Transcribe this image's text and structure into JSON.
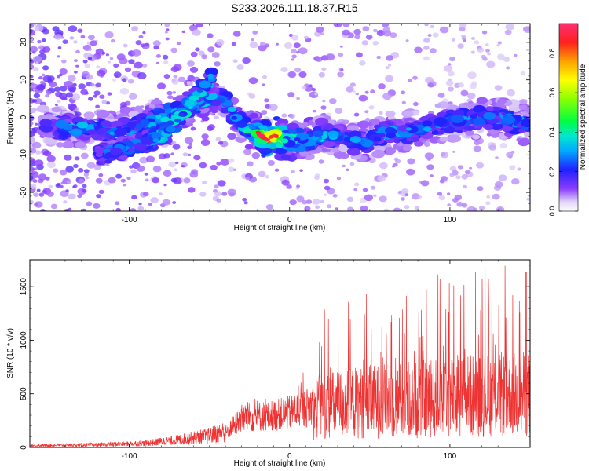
{
  "title": "S233.2026.111.18.37.R15",
  "chart_data": [
    {
      "type": "heatmap",
      "xlabel": "Height of straight line (km)",
      "ylabel": "Frequency (Hz)",
      "xlim": [
        -162,
        150
      ],
      "ylim": [
        -25,
        25
      ],
      "xticks": [
        -100,
        0,
        100
      ],
      "yticks": [
        -20,
        -10,
        0,
        10,
        20
      ],
      "colorbar": {
        "label": "Normalized spectral amplitude",
        "range": [
          0,
          0.95
        ],
        "ticks": [
          0.0,
          0.2,
          0.4,
          0.6,
          0.8
        ]
      },
      "ridge": [
        {
          "x": -150,
          "y": -2,
          "a": 0.2
        },
        {
          "x": -140,
          "y": -3,
          "a": 0.3
        },
        {
          "x": -130,
          "y": -3,
          "a": 0.35
        },
        {
          "x": -120,
          "y": -3,
          "a": 0.3
        },
        {
          "x": -110,
          "y": -4,
          "a": 0.3
        },
        {
          "x": -100,
          "y": -3,
          "a": 0.3
        },
        {
          "x": -90,
          "y": -2,
          "a": 0.3
        },
        {
          "x": -80,
          "y": 0,
          "a": 0.35
        },
        {
          "x": -70,
          "y": 1,
          "a": 0.4
        },
        {
          "x": -60,
          "y": 3,
          "a": 0.35
        },
        {
          "x": -50,
          "y": 5,
          "a": 0.35
        },
        {
          "x": -40,
          "y": 4,
          "a": 0.3
        },
        {
          "x": -30,
          "y": -2,
          "a": 0.35
        },
        {
          "x": -20,
          "y": -4,
          "a": 0.45
        },
        {
          "x": -15,
          "y": -6,
          "a": 0.9
        },
        {
          "x": -10,
          "y": -5,
          "a": 0.8
        },
        {
          "x": 0,
          "y": -6,
          "a": 0.4
        },
        {
          "x": 10,
          "y": -6,
          "a": 0.4
        },
        {
          "x": 20,
          "y": -5,
          "a": 0.35
        },
        {
          "x": 30,
          "y": -5,
          "a": 0.3
        },
        {
          "x": 40,
          "y": -7,
          "a": 0.3
        },
        {
          "x": 50,
          "y": -6,
          "a": 0.3
        },
        {
          "x": 60,
          "y": -4,
          "a": 0.3
        },
        {
          "x": 70,
          "y": -4,
          "a": 0.3
        },
        {
          "x": 80,
          "y": -3,
          "a": 0.3
        },
        {
          "x": 90,
          "y": -2,
          "a": 0.3
        },
        {
          "x": 100,
          "y": -1,
          "a": 0.3
        },
        {
          "x": 110,
          "y": -1,
          "a": 0.3
        },
        {
          "x": 120,
          "y": 0,
          "a": 0.3
        },
        {
          "x": 130,
          "y": 0,
          "a": 0.3
        },
        {
          "x": 140,
          "y": -1,
          "a": 0.3
        },
        {
          "x": 148,
          "y": -2,
          "a": 0.3
        }
      ],
      "branch": [
        {
          "x": -120,
          "y": -10,
          "a": 0.25
        },
        {
          "x": -100,
          "y": -8,
          "a": 0.3
        },
        {
          "x": -80,
          "y": -5,
          "a": 0.35
        },
        {
          "x": -65,
          "y": 2,
          "a": 0.4
        },
        {
          "x": -55,
          "y": 7,
          "a": 0.35
        },
        {
          "x": -48,
          "y": 11,
          "a": 0.3
        }
      ]
    },
    {
      "type": "line",
      "xlabel": "Height of straight line (km)",
      "ylabel": "SNR (10 * v/v)",
      "xlim": [
        -162,
        150
      ],
      "ylim": [
        0,
        1750
      ],
      "xticks": [
        -100,
        0,
        100
      ],
      "yticks": [
        0,
        500,
        1000,
        1500
      ],
      "color": "#ee3333",
      "envelope": [
        {
          "x": -162,
          "y": 18
        },
        {
          "x": -120,
          "y": 25
        },
        {
          "x": -90,
          "y": 40
        },
        {
          "x": -70,
          "y": 70
        },
        {
          "x": -50,
          "y": 110
        },
        {
          "x": -40,
          "y": 150
        },
        {
          "x": -30,
          "y": 300
        },
        {
          "x": -20,
          "y": 320
        },
        {
          "x": -10,
          "y": 330
        },
        {
          "x": 0,
          "y": 360
        },
        {
          "x": 10,
          "y": 410
        },
        {
          "x": 20,
          "y": 480
        },
        {
          "x": 40,
          "y": 520
        },
        {
          "x": 60,
          "y": 540
        },
        {
          "x": 80,
          "y": 560
        },
        {
          "x": 100,
          "y": 590
        },
        {
          "x": 120,
          "y": 610
        },
        {
          "x": 150,
          "y": 620
        }
      ]
    }
  ]
}
